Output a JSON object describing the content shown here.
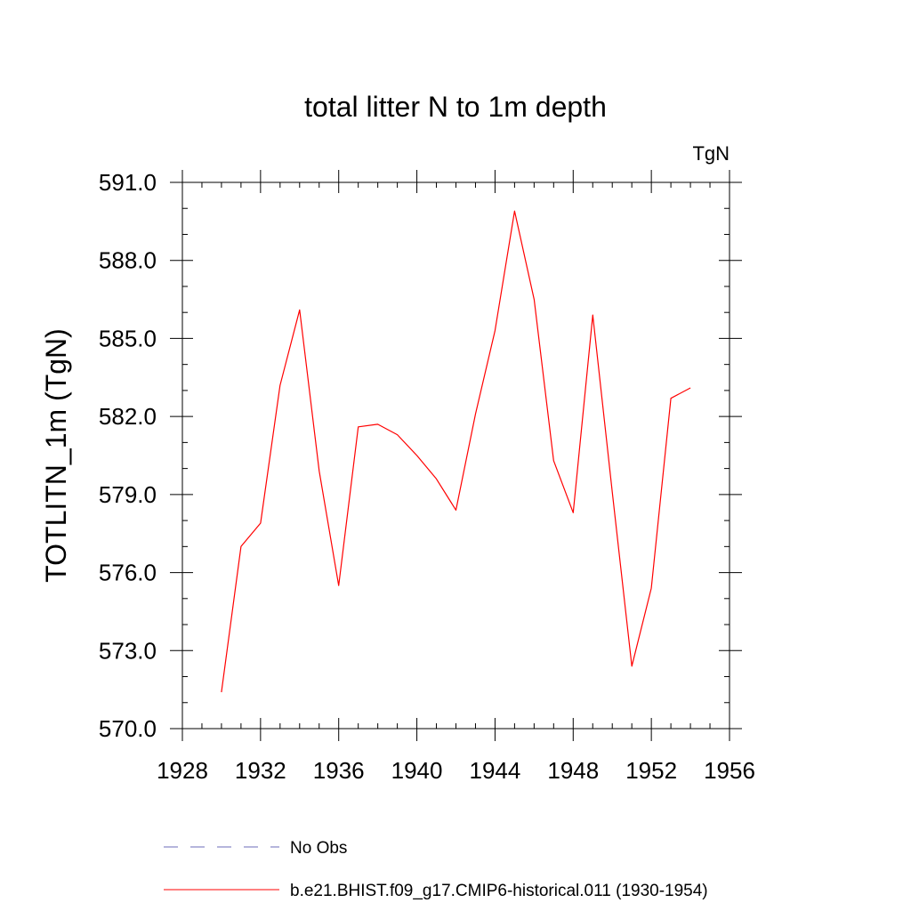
{
  "chart_data": {
    "type": "line",
    "title": "total litter N to 1m depth",
    "units_label": "TgN",
    "ylabel": "TOTLITN_1m  (TgN)",
    "xlabel": "",
    "xlim": [
      1928,
      1956
    ],
    "ylim": [
      570.0,
      591.0
    ],
    "x_ticks": [
      "1928",
      "1932",
      "1936",
      "1940",
      "1944",
      "1948",
      "1952",
      "1956"
    ],
    "y_ticks": [
      "570.0",
      "573.0",
      "576.0",
      "579.0",
      "582.0",
      "585.0",
      "588.0",
      "591.0"
    ],
    "x_tick_values": [
      1928,
      1932,
      1936,
      1940,
      1944,
      1948,
      1952,
      1956
    ],
    "y_tick_values": [
      570,
      573,
      576,
      579,
      582,
      585,
      588,
      591
    ],
    "grid": false,
    "legend_position": "bottom",
    "series": [
      {
        "name": "b.e21.BHIST.f09_g17.CMIP6-historical.011 (1930-1954)",
        "color": "#ff0000",
        "line_style": "solid",
        "x": [
          1930,
          1931,
          1932,
          1933,
          1934,
          1935,
          1936,
          1937,
          1938,
          1939,
          1940,
          1941,
          1942,
          1943,
          1944,
          1945,
          1946,
          1947,
          1948,
          1949,
          1950,
          1951,
          1952,
          1953,
          1954
        ],
        "y": [
          571.4,
          577.0,
          577.9,
          583.2,
          586.1,
          579.9,
          575.5,
          581.6,
          581.7,
          581.3,
          580.5,
          579.6,
          578.4,
          582.1,
          585.3,
          589.9,
          586.5,
          580.3,
          578.3,
          585.9,
          579.1,
          572.4,
          575.4,
          582.7,
          583.1
        ]
      }
    ],
    "legend": [
      {
        "label": "No Obs",
        "color": "#6b6bb8",
        "line_style": "dashed"
      },
      {
        "label": "b.e21.BHIST.f09_g17.CMIP6-historical.011 (1930-1954)",
        "color": "#ff0000",
        "line_style": "solid"
      }
    ]
  }
}
